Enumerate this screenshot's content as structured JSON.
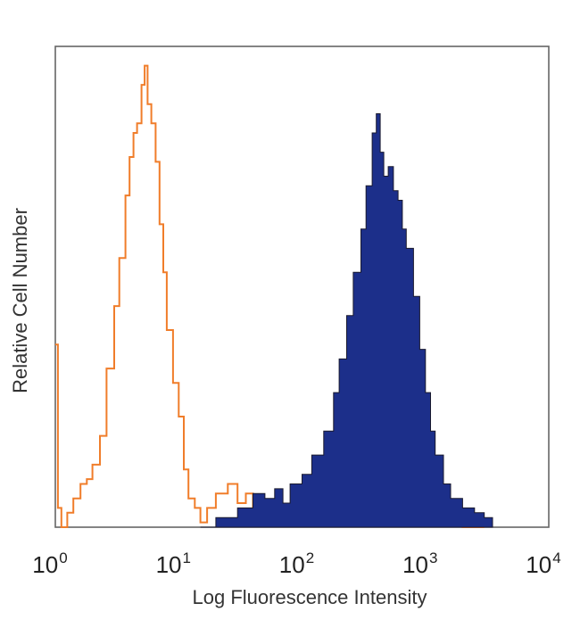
{
  "chart_data": {
    "type": "area",
    "title": "",
    "xlabel": "Log Fluorescence Intensity",
    "ylabel": "Relative Cell Number",
    "x_scale": "log",
    "xlim": [
      1,
      10000
    ],
    "ylim": [
      0,
      1
    ],
    "grid": false,
    "x_ticks": [
      {
        "base": "10",
        "exp": "0"
      },
      {
        "base": "10",
        "exp": "1"
      },
      {
        "base": "10",
        "exp": "2"
      },
      {
        "base": "10",
        "exp": "3"
      },
      {
        "base": "10",
        "exp": "4"
      }
    ],
    "series": [
      {
        "color": "#f07d2a",
        "fill": false,
        "x": [
          1.0,
          1.05,
          1.12,
          1.25,
          1.4,
          1.6,
          1.8,
          2.0,
          2.3,
          2.6,
          3.0,
          3.3,
          3.7,
          4.0,
          4.3,
          4.6,
          5.0,
          5.3,
          5.6,
          6.0,
          6.5,
          7.0,
          7.5,
          8.0,
          9.0,
          10.0,
          11.0,
          12.0,
          13.5,
          15.0,
          17.0,
          20.0,
          25.0,
          30.0,
          35.0,
          40.0,
          50.0,
          60.0,
          80.0,
          100.0,
          150.0,
          200.0,
          300.0,
          500.0,
          1000.0,
          1500.0,
          2000.0,
          3000.0
        ],
        "values": [
          0.38,
          0.04,
          0.0,
          0.03,
          0.06,
          0.09,
          0.1,
          0.13,
          0.19,
          0.33,
          0.46,
          0.56,
          0.69,
          0.77,
          0.82,
          0.84,
          0.92,
          0.96,
          0.88,
          0.84,
          0.76,
          0.63,
          0.53,
          0.41,
          0.3,
          0.23,
          0.12,
          0.06,
          0.04,
          0.01,
          0.04,
          0.07,
          0.09,
          0.05,
          0.07,
          0.03,
          0.04,
          0.02,
          0.03,
          0.01,
          0.02,
          0.01,
          0.02,
          0.01,
          0.01,
          0.02,
          0.0,
          0.0
        ]
      },
      {
        "color": "#1c2f8a",
        "fill": true,
        "x": [
          15.0,
          20.0,
          30.0,
          40.0,
          50.0,
          60.0,
          70.0,
          80.0,
          100.0,
          120.0,
          150.0,
          180.0,
          200.0,
          230.0,
          260.0,
          300.0,
          330.0,
          370.0,
          400.0,
          430.0,
          460.0,
          500.0,
          550.0,
          600.0,
          650.0,
          700.0,
          800.0,
          900.0,
          1000.0,
          1100.0,
          1200.0,
          1400.0,
          1600.0,
          2000.0,
          2500.0,
          3000.0,
          3500.0
        ],
        "values": [
          0.0,
          0.02,
          0.04,
          0.07,
          0.06,
          0.08,
          0.05,
          0.09,
          0.11,
          0.15,
          0.2,
          0.28,
          0.35,
          0.44,
          0.53,
          0.62,
          0.71,
          0.82,
          0.86,
          0.78,
          0.73,
          0.75,
          0.7,
          0.68,
          0.62,
          0.58,
          0.48,
          0.37,
          0.28,
          0.2,
          0.15,
          0.09,
          0.06,
          0.04,
          0.03,
          0.02,
          0.0
        ]
      }
    ]
  }
}
